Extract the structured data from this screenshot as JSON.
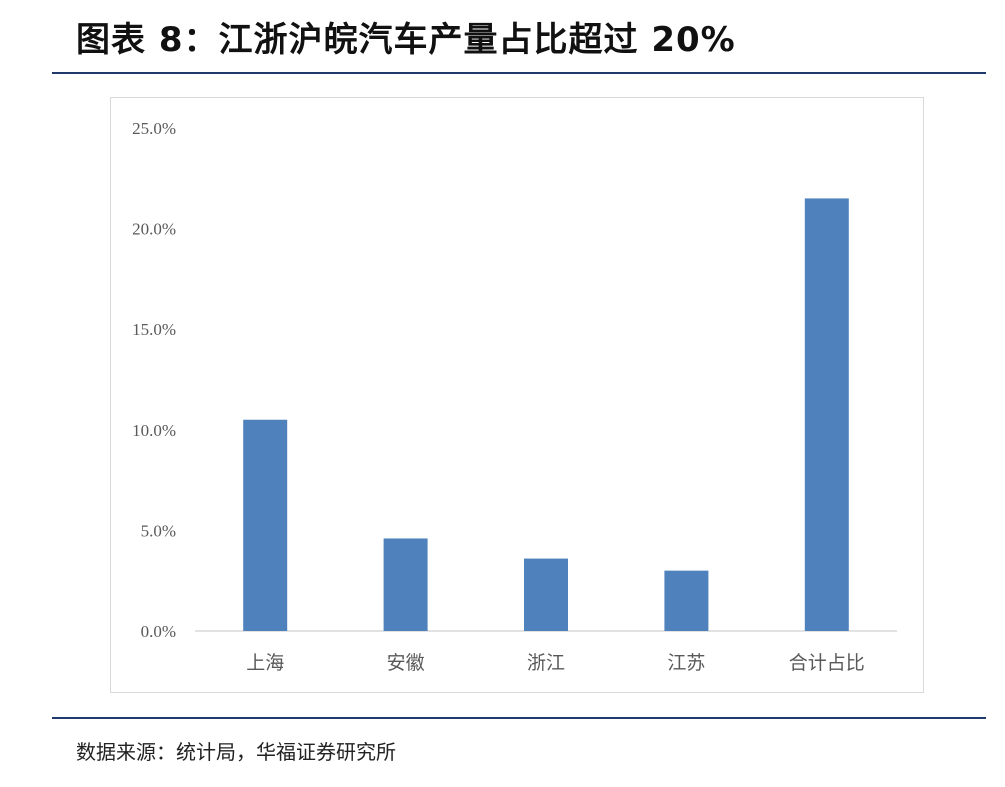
{
  "page_title": "图表 8：江浙沪皖汽车产量占比超过 20%",
  "source_note": "数据来源：统计局，华福证券研究所",
  "colors": {
    "bar": "#4f81bd",
    "axis": "#d9d9d9",
    "rule": "#1f3a6b",
    "text": "#595959"
  },
  "chart_data": {
    "type": "bar",
    "title": "",
    "xlabel": "",
    "ylabel": "",
    "categories": [
      "上海",
      "安徽",
      "浙江",
      "江苏",
      "合计占比"
    ],
    "values": [
      10.5,
      4.6,
      3.6,
      3.0,
      21.5
    ],
    "ylim": [
      0,
      25
    ],
    "yticks": [
      0,
      5,
      10,
      15,
      20,
      25
    ],
    "ytick_labels": [
      "0.0%",
      "5.0%",
      "10.0%",
      "15.0%",
      "20.0%",
      "25.0%"
    ],
    "value_format": "percent",
    "grid": false,
    "legend": "none"
  }
}
